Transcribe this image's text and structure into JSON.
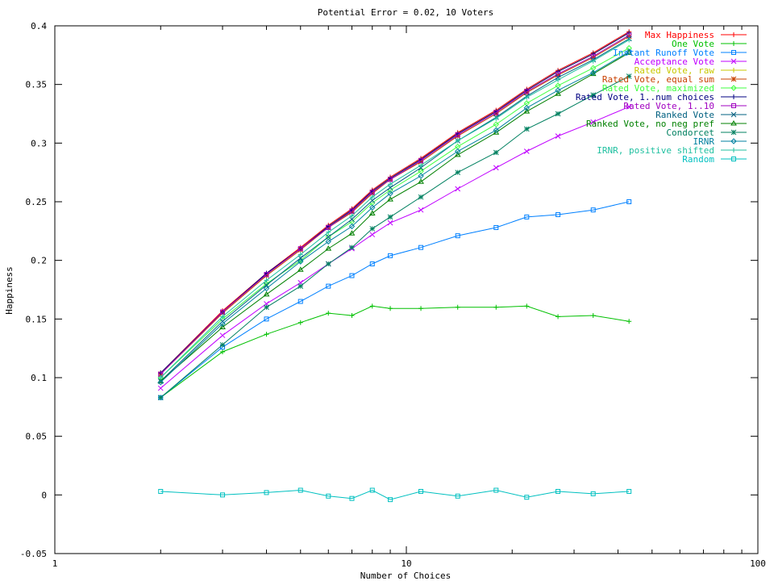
{
  "chart_data": {
    "type": "line",
    "title": "Potential Error = 0.02, 10 Voters",
    "xlabel": "Number of Choices",
    "ylabel": "Happiness",
    "xscale": "log",
    "xlim": [
      1,
      100
    ],
    "ylim": [
      -0.05,
      0.4
    ],
    "xticks": [
      1,
      10,
      100
    ],
    "xtick_labels": [
      "1",
      "10",
      "100"
    ],
    "yticks": [
      -0.05,
      0,
      0.05,
      0.1,
      0.15,
      0.2,
      0.25,
      0.3,
      0.35,
      0.4
    ],
    "ytick_labels": [
      "-0.05",
      "0",
      "0.05",
      "0.1",
      "0.15",
      "0.2",
      "0.25",
      "0.3",
      "0.35",
      "0.4"
    ],
    "grid": false,
    "legend_position": "top-right",
    "x": [
      2,
      3,
      4,
      5,
      6,
      7,
      8,
      9,
      11,
      14,
      18,
      22,
      27,
      34,
      43
    ],
    "series": [
      {
        "name": "Max Happiness",
        "color": "#ff0000",
        "marker": "plus",
        "values": [
          0.104,
          0.157,
          0.189,
          0.211,
          0.23,
          0.244,
          0.26,
          0.271,
          0.287,
          0.309,
          0.328,
          0.346,
          0.362,
          0.377,
          0.395
        ]
      },
      {
        "name": "One Vote",
        "color": "#00c000",
        "marker": "plus",
        "values": [
          0.083,
          0.122,
          0.137,
          0.147,
          0.155,
          0.153,
          0.161,
          0.159,
          0.159,
          0.16,
          0.16,
          0.161,
          0.152,
          0.153,
          0.148
        ]
      },
      {
        "name": "Instant Runoff Vote",
        "color": "#0080ff",
        "marker": "square",
        "values": [
          0.083,
          0.126,
          0.15,
          0.165,
          0.178,
          0.187,
          0.197,
          0.204,
          0.211,
          0.221,
          0.228,
          0.237,
          0.239,
          0.243,
          0.25
        ]
      },
      {
        "name": "Acceptance Vote",
        "color": "#c000ff",
        "marker": "x",
        "values": [
          0.091,
          0.136,
          0.163,
          0.181,
          0.197,
          0.21,
          0.222,
          0.232,
          0.243,
          0.261,
          0.279,
          0.293,
          0.306,
          0.318,
          0.331
        ]
      },
      {
        "name": "Rated Vote, raw",
        "color": "#c8c800",
        "marker": "plus",
        "values": [
          0.104,
          0.156,
          0.188,
          0.21,
          0.229,
          0.242,
          0.258,
          0.27,
          0.286,
          0.308,
          0.327,
          0.345,
          0.361,
          0.376,
          0.394
        ]
      },
      {
        "name": "Rated Vote, equal sum",
        "color": "#c84000",
        "marker": "star",
        "values": [
          0.103,
          0.155,
          0.187,
          0.209,
          0.228,
          0.241,
          0.257,
          0.269,
          0.284,
          0.306,
          0.325,
          0.343,
          0.358,
          0.373,
          0.391
        ]
      },
      {
        "name": "Rated Vote, maximized",
        "color": "#40ff40",
        "marker": "diamond",
        "values": [
          0.1,
          0.15,
          0.18,
          0.2,
          0.22,
          0.233,
          0.249,
          0.26,
          0.276,
          0.297,
          0.316,
          0.334,
          0.349,
          0.364,
          0.381
        ]
      },
      {
        "name": "Rated Vote, 1..num choices",
        "color": "#000080",
        "marker": "plus",
        "values": [
          0.104,
          0.156,
          0.189,
          0.21,
          0.229,
          0.243,
          0.259,
          0.27,
          0.286,
          0.308,
          0.327,
          0.345,
          0.361,
          0.376,
          0.394
        ]
      },
      {
        "name": "Rated Vote, 1..10",
        "color": "#a000c0",
        "marker": "square",
        "values": [
          0.103,
          0.156,
          0.188,
          0.21,
          0.228,
          0.242,
          0.258,
          0.269,
          0.285,
          0.307,
          0.326,
          0.344,
          0.359,
          0.374,
          0.392
        ]
      },
      {
        "name": "Ranked Vote",
        "color": "#006080",
        "marker": "x",
        "values": [
          0.097,
          0.148,
          0.179,
          0.202,
          0.22,
          0.235,
          0.251,
          0.262,
          0.279,
          0.302,
          0.322,
          0.34,
          0.356,
          0.371,
          0.389
        ]
      },
      {
        "name": "Ranked Vote, no neg pref",
        "color": "#008000",
        "marker": "triangle",
        "values": [
          0.097,
          0.143,
          0.171,
          0.192,
          0.21,
          0.223,
          0.24,
          0.252,
          0.267,
          0.29,
          0.309,
          0.327,
          0.342,
          0.359,
          0.377
        ]
      },
      {
        "name": "Condorcet",
        "color": "#008060",
        "marker": "star",
        "values": [
          0.083,
          0.128,
          0.16,
          0.178,
          0.197,
          0.211,
          0.227,
          0.237,
          0.254,
          0.275,
          0.292,
          0.312,
          0.325,
          0.341,
          0.357
        ]
      },
      {
        "name": "IRNR",
        "color": "#0080a0",
        "marker": "diamond",
        "values": [
          0.096,
          0.146,
          0.176,
          0.199,
          0.216,
          0.229,
          0.245,
          0.257,
          0.272,
          0.293,
          0.311,
          0.33,
          0.345,
          0.36,
          0.378
        ]
      },
      {
        "name": "IRNR, positive shifted",
        "color": "#20c0a0",
        "marker": "plus",
        "values": [
          0.1,
          0.152,
          0.183,
          0.205,
          0.224,
          0.238,
          0.254,
          0.265,
          0.281,
          0.302,
          0.321,
          0.339,
          0.354,
          0.37,
          0.388
        ]
      },
      {
        "name": "Random",
        "color": "#00c0c0",
        "marker": "square",
        "values": [
          0.003,
          0.0,
          0.002,
          0.004,
          -0.001,
          -0.003,
          0.004,
          -0.004,
          0.003,
          -0.001,
          0.004,
          -0.002,
          0.003,
          0.001,
          0.003
        ]
      }
    ]
  }
}
